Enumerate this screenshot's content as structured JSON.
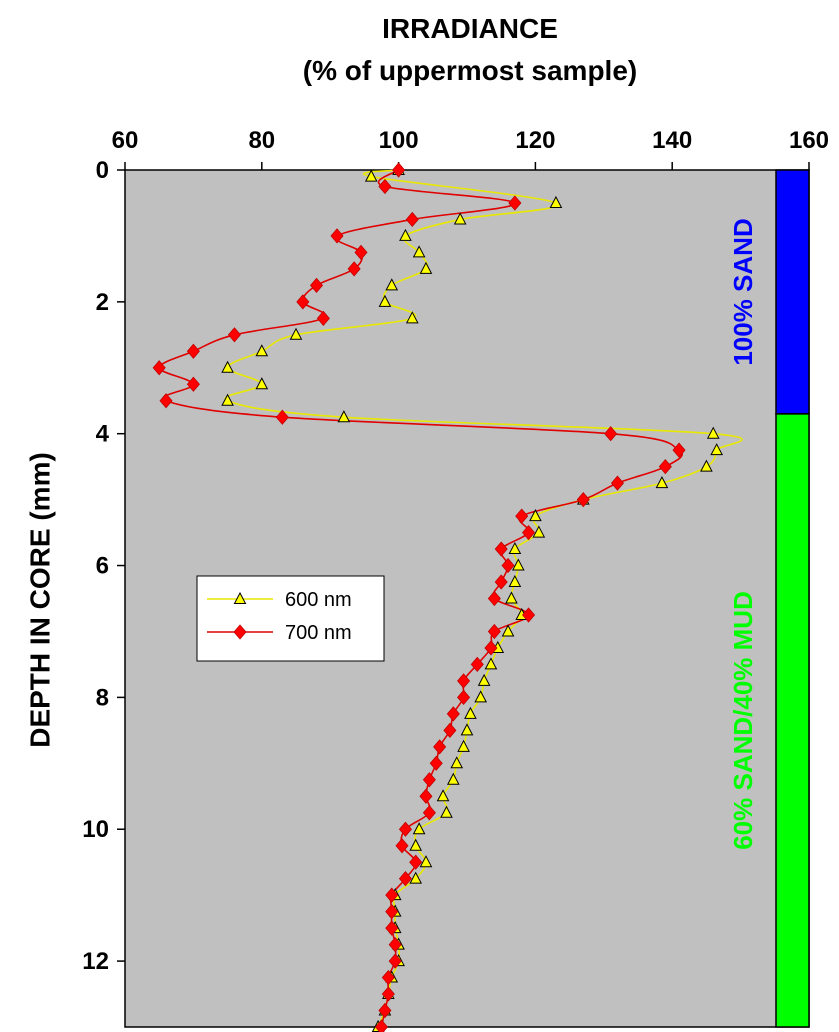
{
  "chart_data": {
    "type": "line",
    "title": "IRRADIANCE",
    "subtitle": "(% of uppermost sample)",
    "ylabel": "DEPTH IN CORE (mm)",
    "xlim": [
      60,
      160
    ],
    "ylim": [
      0,
      13
    ],
    "y_inverted": true,
    "x_axis_position": "top",
    "x_ticks": [
      60,
      80,
      100,
      120,
      140,
      160
    ],
    "y_ticks": [
      0,
      2,
      4,
      6,
      8,
      10,
      12
    ],
    "grid": false,
    "plot_background": "#c0c0c0",
    "legend_position": "middle-left",
    "series": [
      {
        "name": "600 nm",
        "color": "#ffff00",
        "marker": "triangle",
        "points": [
          [
            100,
            0.0
          ],
          [
            96,
            0.1
          ],
          [
            123,
            0.5
          ],
          [
            109,
            0.75
          ],
          [
            101,
            1.0
          ],
          [
            103,
            1.25
          ],
          [
            104,
            1.5
          ],
          [
            99,
            1.75
          ],
          [
            98,
            2.0
          ],
          [
            102,
            2.25
          ],
          [
            85,
            2.5
          ],
          [
            80,
            2.75
          ],
          [
            75,
            3.0
          ],
          [
            80,
            3.25
          ],
          [
            75,
            3.5
          ],
          [
            92,
            3.75
          ],
          [
            146,
            4.0
          ],
          [
            146.5,
            4.25
          ],
          [
            145,
            4.5
          ],
          [
            138.5,
            4.75
          ],
          [
            127,
            5.0
          ],
          [
            120,
            5.25
          ],
          [
            120.5,
            5.5
          ],
          [
            117,
            5.75
          ],
          [
            117.5,
            6.0
          ],
          [
            117,
            6.25
          ],
          [
            116.5,
            6.5
          ],
          [
            118,
            6.75
          ],
          [
            116,
            7.0
          ],
          [
            114.5,
            7.25
          ],
          [
            113.5,
            7.5
          ],
          [
            112.5,
            7.75
          ],
          [
            112,
            8.0
          ],
          [
            110.5,
            8.25
          ],
          [
            110,
            8.5
          ],
          [
            109.5,
            8.75
          ],
          [
            108.5,
            9.0
          ],
          [
            108,
            9.25
          ],
          [
            106.5,
            9.5
          ],
          [
            107,
            9.75
          ],
          [
            103,
            10.0
          ],
          [
            102.5,
            10.25
          ],
          [
            104,
            10.5
          ],
          [
            102.5,
            10.75
          ],
          [
            99.5,
            11.0
          ],
          [
            99.5,
            11.25
          ],
          [
            99.5,
            11.5
          ],
          [
            100,
            11.75
          ],
          [
            100,
            12.0
          ],
          [
            99,
            12.25
          ],
          [
            98.5,
            12.5
          ],
          [
            98,
            12.75
          ],
          [
            97,
            13.0
          ]
        ]
      },
      {
        "name": "700 nm",
        "color": "#ff0000",
        "marker": "diamond",
        "points": [
          [
            100,
            0.0
          ],
          [
            98,
            0.25
          ],
          [
            117,
            0.5
          ],
          [
            102,
            0.75
          ],
          [
            91,
            1.0
          ],
          [
            94.5,
            1.25
          ],
          [
            93.5,
            1.5
          ],
          [
            88,
            1.75
          ],
          [
            86,
            2.0
          ],
          [
            89,
            2.25
          ],
          [
            76,
            2.5
          ],
          [
            70,
            2.75
          ],
          [
            65,
            3.0
          ],
          [
            70,
            3.25
          ],
          [
            66,
            3.5
          ],
          [
            83,
            3.75
          ],
          [
            131,
            4.0
          ],
          [
            141,
            4.25
          ],
          [
            139,
            4.5
          ],
          [
            132,
            4.75
          ],
          [
            127,
            5.0
          ],
          [
            118,
            5.25
          ],
          [
            119,
            5.5
          ],
          [
            115,
            5.75
          ],
          [
            116,
            6.0
          ],
          [
            115,
            6.25
          ],
          [
            114,
            6.5
          ],
          [
            119,
            6.75
          ],
          [
            114,
            7.0
          ],
          [
            113.5,
            7.25
          ],
          [
            111.5,
            7.5
          ],
          [
            109.5,
            7.75
          ],
          [
            109.5,
            8.0
          ],
          [
            108,
            8.25
          ],
          [
            107.5,
            8.5
          ],
          [
            106,
            8.75
          ],
          [
            105.5,
            9.0
          ],
          [
            104.5,
            9.25
          ],
          [
            104,
            9.5
          ],
          [
            104.5,
            9.75
          ],
          [
            101,
            10.0
          ],
          [
            100.5,
            10.25
          ],
          [
            102.5,
            10.5
          ],
          [
            101,
            10.75
          ],
          [
            99,
            11.0
          ],
          [
            99,
            11.25
          ],
          [
            99,
            11.5
          ],
          [
            99.5,
            11.75
          ],
          [
            99.5,
            12.0
          ],
          [
            98.5,
            12.25
          ],
          [
            98.5,
            12.5
          ],
          [
            98,
            12.75
          ],
          [
            97.5,
            13.0
          ]
        ]
      }
    ],
    "bands": [
      {
        "label": "100% SAND",
        "from": 0,
        "to": 3.7,
        "color": "#0000ff",
        "text_color": "#0000ff"
      },
      {
        "label": "60% SAND/40% MUD",
        "from": 3.7,
        "to": 13,
        "color": "#00ff00",
        "text_color": "#00ff00"
      }
    ]
  }
}
